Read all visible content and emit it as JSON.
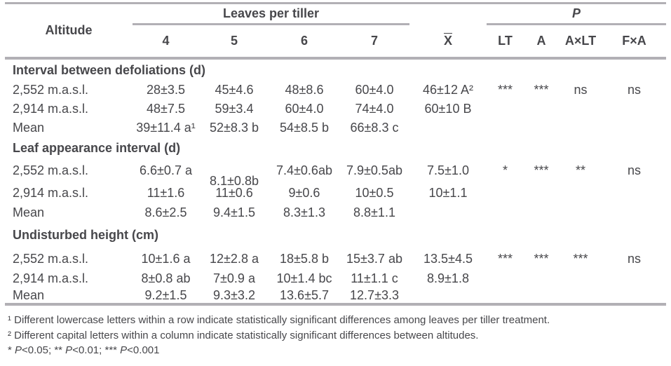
{
  "colors": {
    "rule": "#b2b0b5",
    "text": "#47474b",
    "background": "#ffffff"
  },
  "table": {
    "header": {
      "altitude": "Altitude",
      "leaves_group": "Leaves per tiller",
      "leaf_levels": [
        "4",
        "5",
        "6",
        "7"
      ],
      "mean_symbol": "X",
      "p_group": "P",
      "p_columns": [
        "LT",
        "A",
        "A×LT",
        "F×A"
      ]
    },
    "sections": [
      {
        "title": "Interval between defoliations (d)",
        "rows": [
          {
            "altitude": "2,552 m.a.s.l.",
            "v4": "28±3.5",
            "v5": "45±4.6",
            "v6": "48±8.6",
            "v7": "60±4.0",
            "mean": "46±12 A²",
            "lt": "***",
            "a": "***",
            "axlt": "ns",
            "fxa": "ns"
          },
          {
            "altitude": "2,914 m.a.s.l.",
            "v4": "48±7.5",
            "v5": "59±3.4",
            "v6": "60±4.0",
            "v7": "74±4.0",
            "mean": "60±10 B"
          },
          {
            "altitude": "Mean",
            "v4": "39±11.4 a¹",
            "v5": "52±8.3 b",
            "v6": "54±8.5 b",
            "v7": "66±8.3 c"
          }
        ]
      },
      {
        "title": "Leaf appearance interval (d)",
        "rows": [
          {
            "altitude": "2,552 m.a.s.l.",
            "v4": "6.6±0.7 a",
            "v5": "8.1±0.8b",
            "v5_offset": true,
            "v6": "7.4±0.6ab",
            "v7": "7.9±0.5ab",
            "mean": "7.5±1.0",
            "lt": "*",
            "a": "***",
            "axlt": "**",
            "fxa": "ns"
          },
          {
            "altitude": "2,914 m.a.s.l.",
            "v4": "11±1.6",
            "v5": "11±0.6",
            "v6": "9±0.6",
            "v7": "10±0.5",
            "mean": "10±1.1"
          },
          {
            "altitude": "Mean",
            "v4": "8.6±2.5",
            "v5": "9.4±1.5",
            "v6": "8.3±1.3",
            "v7": "8.8±1.1"
          }
        ]
      },
      {
        "title": "Undisturbed height (cm)",
        "rows": [
          {
            "altitude": "2,552 m.a.s.l.",
            "v4": "10±1.6 a",
            "v5": "12±2.8 a",
            "v6": "18±5.8 b",
            "v7": "15±3.7 ab",
            "mean": "13.5±4.5",
            "lt": "***",
            "a": "***",
            "axlt": "***",
            "fxa": "ns"
          },
          {
            "altitude": "2,914 m.a.s.l.",
            "v4": "8±0.8 ab",
            "v5": "7±0.9 a",
            "v6": "10±1.4 bc",
            "v7": "11±1.1 c",
            "mean": "8.9±1.8"
          },
          {
            "altitude": "Mean",
            "v4": "9.2±1.5",
            "v5": "9.3±3.2",
            "v6": "13.6±5.7",
            "v7": "12.7±3.3"
          }
        ]
      }
    ]
  },
  "footnotes": {
    "line1": "¹ Different lowercase letters within a row indicate statistically significant differences among leaves per tiller treatment.",
    "line2": "² Different capital letters within a column indicate statistically significant differences between altitudes.",
    "line3": {
      "s1": "* ",
      "p1": "P",
      "s2": "<0.05; ** ",
      "p2": "P",
      "s3": "<0.01; *** ",
      "p3": "P",
      "s4": "<0.001"
    }
  }
}
